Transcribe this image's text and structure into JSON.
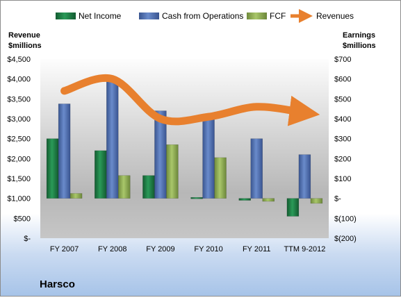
{
  "chart_data": {
    "type": "bar",
    "company": "Harsco",
    "categories": [
      "FY 2007",
      "FY 2008",
      "FY 2009",
      "FY 2010",
      "FY 2011",
      "TTM 9-2012"
    ],
    "series": [
      {
        "name": "Net Income",
        "axis": "right",
        "kind": "bar",
        "color": "#1f7a45",
        "values": [
          300,
          240,
          115,
          5,
          -10,
          -90
        ]
      },
      {
        "name": "Cash from Operations",
        "axis": "right",
        "kind": "bar",
        "color": "#4f70b5",
        "values": [
          475,
          605,
          440,
          400,
          300,
          220
        ]
      },
      {
        "name": "FCF",
        "axis": "right",
        "kind": "bar",
        "color": "#8fae52",
        "values": [
          25,
          115,
          270,
          205,
          -15,
          -25
        ]
      },
      {
        "name": "Revenues",
        "axis": "left",
        "kind": "line",
        "color": "#e8802e",
        "values": [
          3700,
          4000,
          3000,
          3050,
          3300,
          3150
        ]
      }
    ],
    "left_axis": {
      "title_line1": "Revenue",
      "title_line2": "$millions",
      "min": 0,
      "max": 4500,
      "step": 500,
      "tick_labels": [
        "$-",
        "$500",
        "$1,000",
        "$1,500",
        "$2,000",
        "$2,500",
        "$3,000",
        "$3,500",
        "$4,000",
        "$4,500"
      ]
    },
    "right_axis": {
      "title_line1": "Earnings",
      "title_line2": "$millions",
      "min": -200,
      "max": 700,
      "step": 100,
      "tick_labels": [
        "$(200)",
        "$(100)",
        "$-",
        "$100",
        "$200",
        "$300",
        "$400",
        "$500",
        "$600",
        "$700"
      ]
    },
    "legend_position": "top",
    "grid": false
  }
}
